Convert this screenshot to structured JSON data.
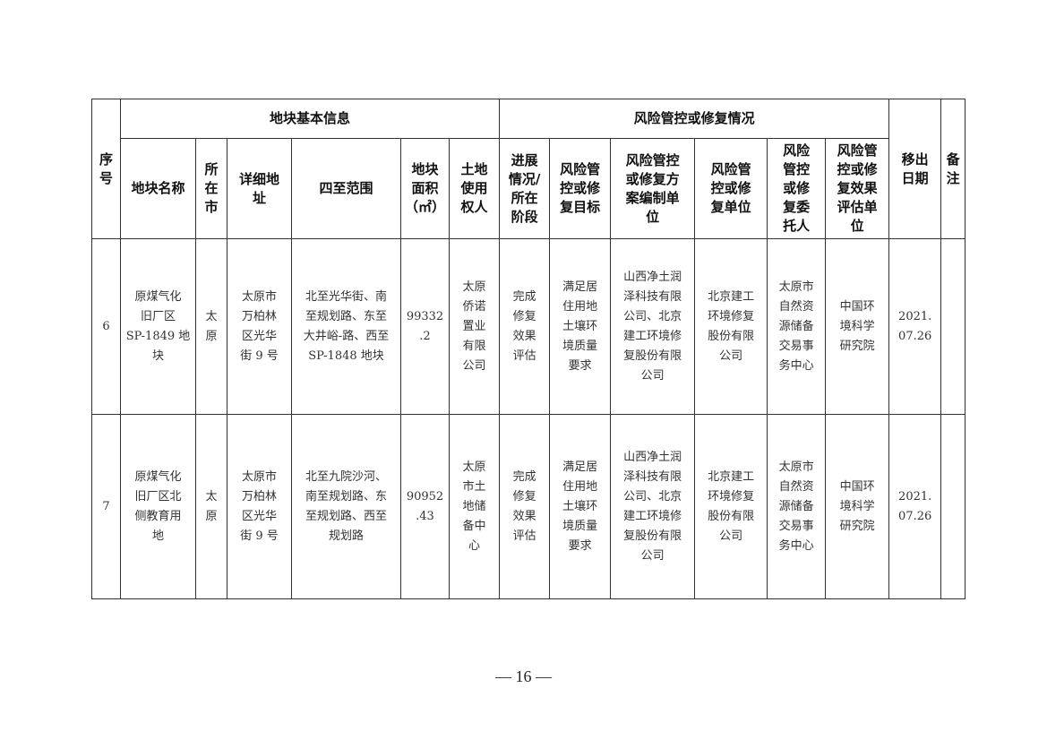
{
  "table": {
    "group_headers": {
      "basic_info": "地块基本信息",
      "remediation": "风险管控或修复情况"
    },
    "columns": {
      "seq": "序\n号",
      "name": "地块名称",
      "city": "所\n在\n市",
      "address": "详细地\n址",
      "boundary": "四至范围",
      "area": "地块\n面积\n（㎡）",
      "owner": "土地\n使用\n权人",
      "progress": "进展\n情况/\n所在\n阶段",
      "target": "风险管\n控或修\n复目标",
      "plan_unit": "风险管控\n或修复方\n案编制单\n位",
      "repair_unit": "风险管\n控或修\n复单位",
      "client": "风险\n管控\n或修\n复委\n托人",
      "eval_unit": "风险管\n控或修\n复效果\n评估单\n位",
      "removal_date": "移出\n日期",
      "remarks": "备\n注"
    },
    "rows": [
      {
        "seq": "6",
        "name": "原煤气化\n旧厂区\nSP-1849 地\n块",
        "city": "太\n原",
        "address": "太原市\n万柏林\n区光华\n街 9 号",
        "boundary": "北至光华街、南\n至规划路、东至\n大井峪-路、西至\nSP-1848  地块",
        "area": "99332\n.2",
        "owner": "太原\n侨诺\n置业\n有限\n公司",
        "progress": "完成\n修复\n效果\n评估",
        "target": "满足居\n住用地\n土壤环\n境质量\n要求",
        "plan_unit": "山西净土润\n泽科技有限\n公司、北京\n建工环境修\n复股份有限\n公司",
        "repair_unit": "北京建工\n环境修复\n股份有限\n公司",
        "client": "太原市\n自然资\n源储备\n交易事\n务中心",
        "eval_unit": "中国环\n境科学\n研究院",
        "removal_date": "2021.\n07.26",
        "remarks": ""
      },
      {
        "seq": "7",
        "name": "原煤气化\n旧厂区北\n侧教育用\n地",
        "city": "太\n原",
        "address": "太原市\n万柏林\n区光华\n街 9 号",
        "boundary": "北至九院沙河、\n南至规划路、东\n至规划路、西至\n规划路",
        "area": "90952\n.43",
        "owner": "太原\n市土\n地储\n备中\n心",
        "progress": "完成\n修复\n效果\n评估",
        "target": "满足居\n住用地\n土壤环\n境质量\n要求",
        "plan_unit": "山西净土润\n泽科技有限\n公司、北京\n建工环境修\n复股份有限\n公司",
        "repair_unit": "北京建工\n环境修复\n股份有限\n公司",
        "client": "太原市\n自然资\n源储备\n交易事\n务中心",
        "eval_unit": "中国环\n境科学\n研究院",
        "removal_date": "2021.\n07.26",
        "remarks": ""
      }
    ]
  },
  "footer": {
    "page_number": "—  16  —"
  }
}
